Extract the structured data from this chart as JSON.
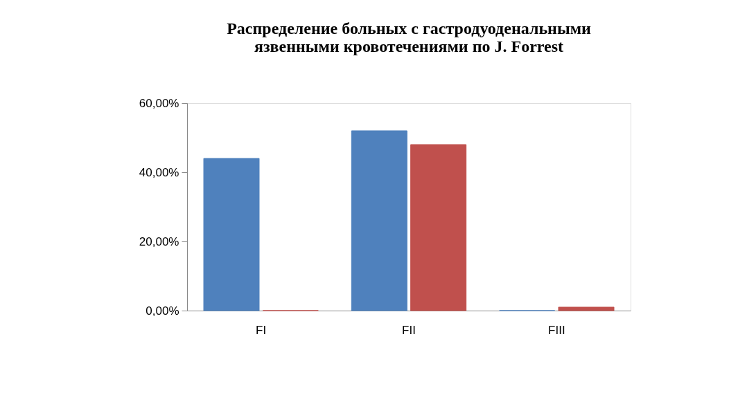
{
  "chart_data": {
    "type": "bar",
    "title": [
      "Распределение больных с гастродуоденальными",
      "язвенными кровотечениями по J. Forrest"
    ],
    "categories": [
      "FI",
      "FII",
      "FIII"
    ],
    "series": [
      {
        "color": "#4f81bd",
        "values": [
          0.44,
          0.52,
          0
        ]
      },
      {
        "color": "#c0504d",
        "values": [
          0,
          0.48,
          0.01
        ]
      }
    ],
    "ylim": [
      0,
      0.6
    ],
    "yticks": [
      {
        "value": 0,
        "label": "0,00%"
      },
      {
        "value": 0.2,
        "label": "20,00%"
      },
      {
        "value": 0.4,
        "label": "40,00%"
      },
      {
        "value": 0.6,
        "label": "60,00%"
      }
    ],
    "grid": false,
    "legend": false
  }
}
